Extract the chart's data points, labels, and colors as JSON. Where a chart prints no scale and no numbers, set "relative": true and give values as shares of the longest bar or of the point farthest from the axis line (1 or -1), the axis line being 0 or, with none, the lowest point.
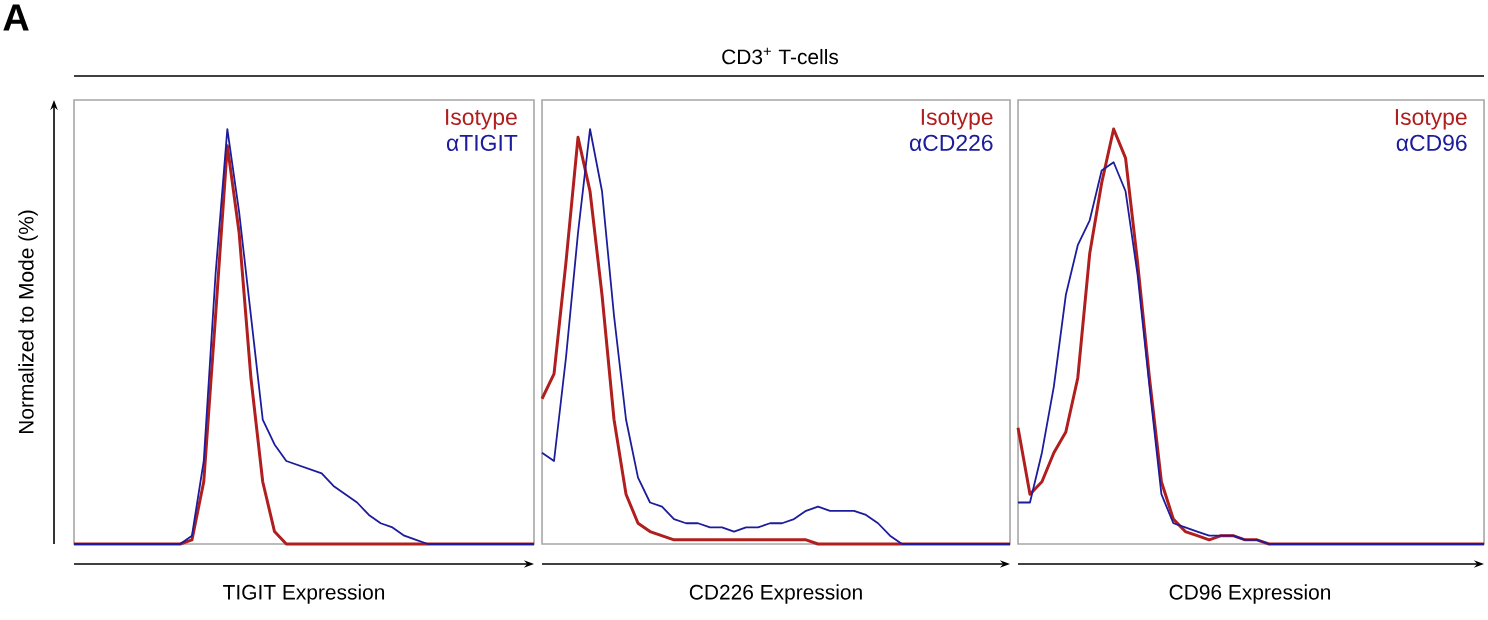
{
  "chart_data": [
    {
      "type": "line",
      "relative": true,
      "annotations": [
        "A"
      ],
      "ylabel": "Normalized to Mode (%)",
      "xlabel": "TIGIT Expression",
      "tick_labels": false,
      "categories": [
        null,
        null,
        null,
        null,
        null,
        null,
        null,
        null,
        null,
        null,
        null,
        null,
        null,
        null,
        null,
        null,
        null,
        null,
        null,
        null,
        null,
        null,
        null,
        null,
        null,
        null,
        null,
        null,
        null,
        null,
        null,
        null,
        null,
        null,
        null,
        null,
        null,
        null,
        null,
        null
      ],
      "series": [
        {
          "name": "Isotype",
          "color": "#b01e1e",
          "values": [
            0,
            0,
            0,
            0,
            0,
            0,
            0,
            0,
            0,
            0,
            0.01,
            0.15,
            0.55,
            0.96,
            0.75,
            0.4,
            0.15,
            0.03,
            0,
            0,
            0,
            0,
            0,
            0,
            0,
            0,
            0,
            0,
            0,
            0,
            0,
            0,
            0,
            0,
            0,
            0,
            0,
            0,
            0,
            0
          ]
        },
        {
          "name": "αTIGIT",
          "color": "#1c1c9c",
          "values": [
            0,
            0,
            0,
            0,
            0,
            0,
            0,
            0,
            0,
            0,
            0.02,
            0.2,
            0.65,
            1,
            0.8,
            0.55,
            0.3,
            0.24,
            0.2,
            0.19,
            0.18,
            0.17,
            0.14,
            0.12,
            0.1,
            0.07,
            0.05,
            0.04,
            0.02,
            0.01,
            0,
            0,
            0,
            0,
            0,
            0,
            0,
            0,
            0,
            0
          ]
        }
      ]
    },
    {
      "type": "line",
      "relative": true,
      "title": "CD3$^{+}$ T-cells",
      "xlabel": "CD226 Expression",
      "tick_labels": false,
      "categories": [
        null,
        null,
        null,
        null,
        null,
        null,
        null,
        null,
        null,
        null,
        null,
        null,
        null,
        null,
        null,
        null,
        null,
        null,
        null,
        null,
        null,
        null,
        null,
        null,
        null,
        null,
        null,
        null,
        null,
        null,
        null,
        null,
        null,
        null,
        null,
        null,
        null,
        null,
        null,
        null
      ],
      "series": [
        {
          "name": "Isotype",
          "color": "#b01e1e",
          "values": [
            0.35,
            0.41,
            0.68,
            0.98,
            0.85,
            0.6,
            0.3,
            0.12,
            0.05,
            0.03,
            0.02,
            0.01,
            0.01,
            0.01,
            0.01,
            0.01,
            0.01,
            0.01,
            0.01,
            0.01,
            0.01,
            0.01,
            0.01,
            0,
            0,
            0,
            0,
            0,
            0,
            0,
            0,
            0,
            0,
            0,
            0,
            0,
            0,
            0,
            0,
            0
          ]
        },
        {
          "name": "αCD226",
          "color": "#1c1c9c",
          "values": [
            0.22,
            0.2,
            0.45,
            0.75,
            1,
            0.85,
            0.55,
            0.3,
            0.16,
            0.1,
            0.09,
            0.06,
            0.05,
            0.05,
            0.04,
            0.04,
            0.03,
            0.04,
            0.04,
            0.05,
            0.05,
            0.06,
            0.08,
            0.09,
            0.08,
            0.08,
            0.08,
            0.07,
            0.05,
            0.02,
            0,
            0,
            0,
            0,
            0,
            0,
            0,
            0,
            0,
            0
          ]
        }
      ]
    },
    {
      "type": "line",
      "relative": true,
      "xlabel": "CD96 Expression",
      "tick_labels": false,
      "categories": [
        null,
        null,
        null,
        null,
        null,
        null,
        null,
        null,
        null,
        null,
        null,
        null,
        null,
        null,
        null,
        null,
        null,
        null,
        null,
        null,
        null,
        null,
        null,
        null,
        null,
        null,
        null,
        null,
        null,
        null,
        null,
        null,
        null,
        null,
        null,
        null,
        null,
        null,
        null,
        null
      ],
      "series": [
        {
          "name": "Isotype",
          "color": "#b01e1e",
          "values": [
            0.28,
            0.12,
            0.15,
            0.22,
            0.27,
            0.4,
            0.7,
            0.87,
            1,
            0.93,
            0.68,
            0.4,
            0.15,
            0.06,
            0.03,
            0.02,
            0.01,
            0.02,
            0.02,
            0.01,
            0.01,
            0,
            0,
            0,
            0,
            0,
            0,
            0,
            0,
            0,
            0,
            0,
            0,
            0,
            0,
            0,
            0,
            0,
            0,
            0
          ]
        },
        {
          "name": "αCD96",
          "color": "#1c1c9c",
          "values": [
            0.1,
            0.1,
            0.22,
            0.38,
            0.6,
            0.72,
            0.78,
            0.9,
            0.92,
            0.85,
            0.65,
            0.38,
            0.12,
            0.05,
            0.04,
            0.03,
            0.02,
            0.02,
            0.02,
            0.01,
            0.01,
            0,
            0,
            0,
            0,
            0,
            0,
            0,
            0,
            0,
            0,
            0,
            0,
            0,
            0,
            0,
            0,
            0,
            0,
            0
          ]
        }
      ]
    }
  ]
}
